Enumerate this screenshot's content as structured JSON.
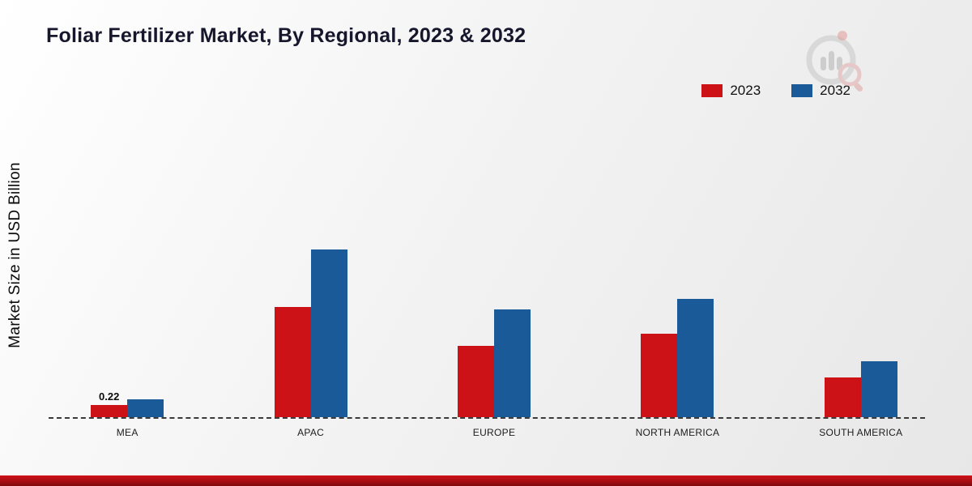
{
  "chart_data": {
    "type": "bar",
    "title": "Foliar Fertilizer Market, By Regional, 2023 & 2032",
    "ylabel": "Market Size in USD Billion",
    "xlabel": "",
    "categories": [
      "MEA",
      "APAC",
      "EUROPE",
      "NORTH AMERICA",
      "SOUTH AMERICA"
    ],
    "series": [
      {
        "name": "2023",
        "color": "#cc1117",
        "values": [
          0.22,
          2.0,
          1.3,
          1.52,
          0.72
        ]
      },
      {
        "name": "2032",
        "color": "#1b5a99",
        "values": [
          0.32,
          3.05,
          1.95,
          2.15,
          1.02
        ]
      }
    ],
    "ylim": [
      0,
      3.5
    ],
    "grid": false,
    "legend_position": "top-right",
    "annotations": [
      {
        "category": "MEA",
        "series": "2023",
        "text": "0.22"
      }
    ]
  }
}
